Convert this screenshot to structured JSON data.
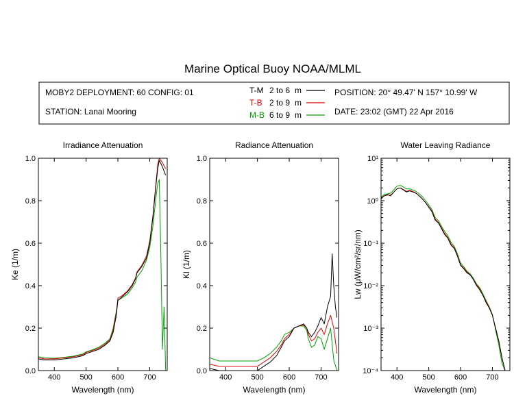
{
  "title": "Marine Optical Buoy NOAA/MLML",
  "info": {
    "deployment": "MOBY2 DEPLOYMENT: 60 CONFIG: 01",
    "station": "STATION: Lanai Mooring",
    "position": "POSITION: 20° 49.47' N   157° 10.99' W",
    "date": "DATE: 23:02 (GMT) 22 Apr 2016",
    "legend": [
      {
        "code": "T-M",
        "range": "2 to 6",
        "unit": "m",
        "color": "#000000"
      },
      {
        "code": "T-B",
        "range": "2 to 9",
        "unit": "m",
        "color": "#e00000"
      },
      {
        "code": "M-B",
        "range": "6 to 9",
        "unit": "m",
        "color": "#00a000"
      }
    ]
  },
  "colors": {
    "T-M": "#000000",
    "T-B": "#e00000",
    "M-B": "#00a000"
  },
  "chart_data": [
    {
      "type": "line",
      "title": "Irradiance Attenuation",
      "xlabel": "Wavelength (nm)",
      "ylabel": "Ke  (1/m)",
      "xlim": [
        350,
        755
      ],
      "ylim": [
        0,
        1.0
      ],
      "xticks": [
        400,
        500,
        600,
        700
      ],
      "xticklabels": [
        "400",
        "500",
        "600",
        "700"
      ],
      "yticks": [
        0,
        0.2,
        0.4,
        0.6,
        0.8,
        1.0
      ],
      "yticklabels": [
        "0.0",
        "0.2",
        "0.4",
        "0.6",
        "0.8",
        "1.0"
      ],
      "series": [
        {
          "name": "T-M",
          "x": [
            350,
            370,
            400,
            430,
            460,
            490,
            500,
            520,
            540,
            560,
            575,
            585,
            595,
            600,
            615,
            630,
            645,
            655,
            660,
            675,
            690,
            700,
            710,
            715,
            720,
            725,
            730,
            740,
            750
          ],
          "y": [
            0.055,
            0.05,
            0.05,
            0.055,
            0.06,
            0.07,
            0.08,
            0.09,
            0.1,
            0.12,
            0.14,
            0.18,
            0.26,
            0.33,
            0.35,
            0.37,
            0.4,
            0.43,
            0.46,
            0.49,
            0.53,
            0.6,
            0.72,
            0.8,
            0.88,
            0.95,
            0.99,
            0.96,
            0.92
          ]
        },
        {
          "name": "T-B",
          "x": [
            350,
            370,
            400,
            430,
            460,
            490,
            500,
            520,
            540,
            560,
            575,
            585,
            595,
            600,
            615,
            630,
            645,
            655,
            660,
            675,
            690,
            700,
            710,
            715,
            720,
            725,
            730,
            740,
            750
          ],
          "y": [
            0.06,
            0.055,
            0.055,
            0.06,
            0.065,
            0.075,
            0.085,
            0.095,
            0.105,
            0.125,
            0.145,
            0.19,
            0.27,
            0.34,
            0.355,
            0.375,
            0.405,
            0.435,
            0.465,
            0.495,
            0.54,
            0.61,
            0.73,
            0.81,
            0.89,
            0.97,
            1.0,
            0.98,
            0.95
          ]
        },
        {
          "name": "M-B",
          "x": [
            350,
            370,
            400,
            430,
            460,
            490,
            500,
            520,
            540,
            560,
            575,
            585,
            595,
            600,
            615,
            630,
            645,
            655,
            660,
            675,
            690,
            700,
            710,
            715,
            720,
            725,
            730,
            735,
            740,
            745,
            750
          ],
          "y": [
            0.065,
            0.06,
            0.058,
            0.062,
            0.068,
            0.078,
            0.088,
            0.098,
            0.11,
            0.13,
            0.15,
            0.2,
            0.28,
            0.33,
            0.345,
            0.36,
            0.39,
            0.415,
            0.44,
            0.47,
            0.52,
            0.58,
            0.68,
            0.75,
            0.82,
            0.88,
            0.9,
            0.55,
            0.1,
            0.3,
            0.0
          ]
        }
      ]
    },
    {
      "type": "line",
      "title": "Radiance Attenuation",
      "xlabel": "Wavelength (nm)",
      "ylabel": "Kl  (1/m)",
      "xlim": [
        350,
        755
      ],
      "ylim": [
        0,
        1.0
      ],
      "xticks": [
        400,
        500,
        600,
        700
      ],
      "xticklabels": [
        "400",
        "500",
        "600",
        "700"
      ],
      "yticks": [
        0,
        0.2,
        0.4,
        0.6,
        0.8,
        1.0
      ],
      "yticklabels": [
        "0.0",
        "0.2",
        "0.4",
        "0.6",
        "0.8",
        "1.0"
      ],
      "series": [
        {
          "name": "T-M",
          "x": [
            350,
            380,
            420,
            460,
            500,
            520,
            540,
            560,
            575,
            585,
            600,
            615,
            630,
            645,
            655,
            660,
            670,
            680,
            690,
            700,
            710,
            720,
            730,
            735,
            740,
            745,
            750
          ],
          "y": [
            0.01,
            0.0,
            0.0,
            0.0,
            0.0,
            0.02,
            0.04,
            0.07,
            0.11,
            0.14,
            0.16,
            0.2,
            0.21,
            0.22,
            0.2,
            0.18,
            0.16,
            0.18,
            0.21,
            0.25,
            0.22,
            0.3,
            0.35,
            0.55,
            0.4,
            0.3,
            0.25
          ]
        },
        {
          "name": "T-B",
          "x": [
            350,
            380,
            420,
            460,
            500,
            520,
            540,
            560,
            575,
            585,
            600,
            615,
            630,
            645,
            655,
            660,
            670,
            680,
            690,
            700,
            710,
            720,
            730,
            740,
            750
          ],
          "y": [
            0.03,
            0.02,
            0.02,
            0.02,
            0.02,
            0.04,
            0.06,
            0.09,
            0.12,
            0.15,
            0.17,
            0.2,
            0.21,
            0.215,
            0.2,
            0.17,
            0.14,
            0.15,
            0.18,
            0.2,
            0.17,
            0.22,
            0.26,
            0.2,
            0.08
          ]
        },
        {
          "name": "M-B",
          "x": [
            350,
            380,
            420,
            460,
            500,
            520,
            540,
            560,
            575,
            585,
            600,
            615,
            630,
            645,
            655,
            660,
            670,
            680,
            690,
            700,
            710,
            720,
            730,
            740,
            750
          ],
          "y": [
            0.06,
            0.045,
            0.045,
            0.045,
            0.045,
            0.06,
            0.08,
            0.11,
            0.14,
            0.17,
            0.18,
            0.2,
            0.21,
            0.21,
            0.19,
            0.15,
            0.11,
            0.12,
            0.16,
            0.15,
            0.1,
            0.15,
            0.2,
            0.05,
            0.0
          ]
        }
      ]
    },
    {
      "type": "line",
      "title": "Water Leaving Radiance",
      "xlabel": "Wavelength (nm)",
      "ylabel": "Lw  (μW/cm²/sr/nm)",
      "yscale": "log",
      "xlim": [
        350,
        755
      ],
      "ylim": [
        0.0001,
        10
      ],
      "xticks": [
        400,
        500,
        600,
        700
      ],
      "xticklabels": [
        "400",
        "500",
        "600",
        "700"
      ],
      "yticks": [
        0.0001,
        0.001,
        0.01,
        0.1,
        1,
        10
      ],
      "yticklabels": [
        "10⁻⁴",
        "10⁻³",
        "10⁻²",
        "10⁻¹",
        "10⁰",
        "10¹"
      ],
      "series": [
        {
          "name": "T-M",
          "x": [
            350,
            360,
            370,
            380,
            390,
            400,
            410,
            420,
            430,
            440,
            450,
            460,
            470,
            480,
            490,
            500,
            510,
            520,
            530,
            540,
            550,
            560,
            570,
            580,
            590,
            600,
            610,
            620,
            630,
            640,
            650,
            660,
            670,
            680,
            690,
            700,
            710,
            720,
            730,
            740
          ],
          "y": [
            1.1,
            1.3,
            1.4,
            1.3,
            1.6,
            1.9,
            2.0,
            1.8,
            1.6,
            1.7,
            1.6,
            1.5,
            1.3,
            1.1,
            0.9,
            0.7,
            0.55,
            0.35,
            0.3,
            0.22,
            0.16,
            0.13,
            0.09,
            0.075,
            0.05,
            0.03,
            0.025,
            0.02,
            0.018,
            0.014,
            0.01,
            0.008,
            0.006,
            0.004,
            0.003,
            0.002,
            0.001,
            0.0005,
            0.0002,
            0.0001
          ]
        },
        {
          "name": "T-B",
          "x": [
            350,
            360,
            370,
            380,
            390,
            400,
            410,
            420,
            430,
            440,
            450,
            460,
            470,
            480,
            490,
            500,
            510,
            520,
            530,
            540,
            550,
            560,
            570,
            580,
            590,
            600,
            610,
            620,
            630,
            640,
            650,
            660,
            670,
            680,
            690,
            700,
            710,
            720,
            730,
            740
          ],
          "y": [
            1.15,
            1.3,
            1.35,
            1.35,
            1.6,
            1.9,
            2.0,
            1.85,
            1.65,
            1.75,
            1.65,
            1.5,
            1.3,
            1.1,
            0.9,
            0.72,
            0.57,
            0.37,
            0.31,
            0.23,
            0.17,
            0.135,
            0.095,
            0.078,
            0.052,
            0.031,
            0.026,
            0.021,
            0.018,
            0.014,
            0.0105,
            0.0085,
            0.006,
            0.0042,
            0.0031,
            0.002,
            0.001,
            0.0005,
            0.0002,
            0.0001
          ]
        },
        {
          "name": "M-B",
          "x": [
            350,
            360,
            370,
            380,
            390,
            400,
            410,
            420,
            430,
            440,
            450,
            460,
            470,
            480,
            490,
            500,
            510,
            520,
            530,
            540,
            550,
            560,
            570,
            580,
            590,
            600,
            610,
            620,
            630,
            640,
            650,
            660,
            670,
            680,
            690,
            700,
            710,
            720,
            730,
            740
          ],
          "y": [
            1.2,
            1.4,
            1.45,
            1.5,
            1.8,
            2.2,
            2.3,
            2.1,
            1.9,
            1.9,
            1.8,
            1.65,
            1.45,
            1.25,
            1.0,
            0.8,
            0.62,
            0.4,
            0.34,
            0.25,
            0.19,
            0.15,
            0.105,
            0.085,
            0.057,
            0.034,
            0.028,
            0.022,
            0.019,
            0.015,
            0.011,
            0.009,
            0.0065,
            0.0045,
            0.0032,
            0.0021,
            0.0009,
            0.0004,
            0.00015,
            0.0001
          ]
        }
      ]
    }
  ]
}
